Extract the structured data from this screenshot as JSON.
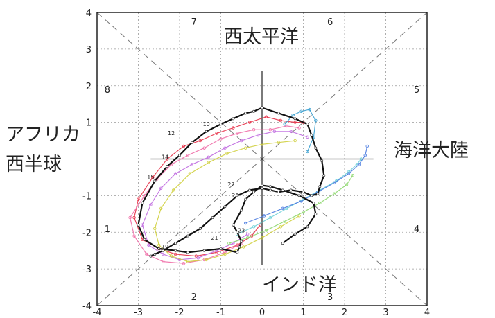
{
  "chart_data": {
    "type": "line",
    "title": "",
    "xlabel": "",
    "ylabel": "",
    "xlim": [
      -4,
      4
    ],
    "ylim": [
      -4,
      4
    ],
    "grid": true,
    "x_ticks": [
      "-4",
      "-3",
      "-2",
      "-1",
      "0",
      "1",
      "2",
      "3",
      "4"
    ],
    "y_ticks": [
      "-4",
      "-3",
      "-2",
      "-1",
      "1",
      "2",
      "3",
      "4"
    ],
    "phase_labels": [
      {
        "text": "1",
        "x": -3.75,
        "y": -1.9
      },
      {
        "text": "2",
        "x": -1.65,
        "y": -3.75
      },
      {
        "text": "3",
        "x": 1.65,
        "y": -3.75
      },
      {
        "text": "4",
        "x": 3.75,
        "y": -1.9
      },
      {
        "text": "5",
        "x": 3.75,
        "y": 1.9
      },
      {
        "text": "6",
        "x": 1.65,
        "y": 3.75
      },
      {
        "text": "7",
        "x": -1.65,
        "y": 3.75
      },
      {
        "text": "8",
        "x": -3.75,
        "y": 1.9
      }
    ],
    "region_labels": {
      "top": "西太平洋",
      "bottom": "インド洋",
      "left_line1": "アフリカ",
      "left_line2": "西半球",
      "right": "海洋大陸"
    },
    "mean_trajectory": {
      "color": "#111111",
      "x": [
        0.5,
        0.8,
        1.1,
        1.3,
        1.25,
        0.9,
        0.5,
        0.2,
        0.0,
        -0.2,
        -0.4,
        -0.5,
        -0.7,
        -0.6,
        -0.5,
        -0.55,
        -0.6,
        -1.0,
        -1.4,
        -1.8,
        -2.1,
        -2.5,
        -2.85,
        -3.0,
        -2.9,
        -2.6,
        -2.3,
        -2.0,
        -1.7,
        -1.35,
        -1.0,
        -0.7,
        -0.4,
        -0.2,
        0.0,
        0.4,
        0.8,
        1.1,
        1.2,
        1.3,
        1.45,
        1.5,
        1.4,
        1.35,
        1.2,
        1.0,
        0.7,
        0.4,
        0.2,
        0.0,
        -0.3,
        -0.6,
        -0.9,
        -1.2,
        -1.5,
        -1.8,
        -2.1,
        -2.4,
        -2.6,
        -2.7
      ],
      "y": [
        -2.3,
        -2.05,
        -1.85,
        -1.5,
        -1.2,
        -1.0,
        -0.85,
        -0.75,
        -0.72,
        -0.9,
        -1.1,
        -1.4,
        -1.8,
        -2.0,
        -2.25,
        -2.4,
        -2.55,
        -2.45,
        -2.5,
        -2.55,
        -2.5,
        -2.45,
        -2.2,
        -1.8,
        -1.2,
        -0.6,
        -0.2,
        0.1,
        0.45,
        0.75,
        0.95,
        1.1,
        1.25,
        1.3,
        1.4,
        1.25,
        1.1,
        0.95,
        0.65,
        0.3,
        -0.05,
        -0.45,
        -0.75,
        -0.95,
        -1.0,
        -0.9,
        -0.85,
        -0.9,
        -0.85,
        -0.8,
        -0.85,
        -1.0,
        -1.3,
        -1.6,
        -1.9,
        -2.1,
        -2.3,
        -2.5,
        -2.6,
        -2.65
      ],
      "day_labels": [
        {
          "text": "10",
          "x": -1.35,
          "y": 0.9
        },
        {
          "text": "12",
          "x": -2.2,
          "y": 0.65
        },
        {
          "text": "14",
          "x": -2.35,
          "y": 0.0
        },
        {
          "text": "15",
          "x": -2.7,
          "y": -0.55
        },
        {
          "text": "19",
          "x": -2.35,
          "y": -2.45
        },
        {
          "text": "21",
          "x": -1.15,
          "y": -2.2
        },
        {
          "text": "23",
          "x": -0.5,
          "y": -2.0
        },
        {
          "text": "25",
          "x": -0.65,
          "y": -1.05
        },
        {
          "text": "27",
          "x": -0.75,
          "y": -0.75
        }
      ]
    },
    "series": [
      {
        "color": "#e8334a",
        "x": [
          1.0,
          0.8,
          0.45,
          0.1,
          -0.3,
          -0.7,
          -1.1,
          -1.5,
          -1.9,
          -2.3,
          -2.65,
          -3.0,
          -3.1,
          -2.9,
          -2.5,
          -2.1,
          -1.6,
          -1.1,
          -0.6,
          -0.25,
          -0.05
        ],
        "y": [
          1.0,
          1.0,
          1.05,
          1.15,
          1.0,
          0.85,
          0.7,
          0.5,
          0.35,
          0.0,
          -0.5,
          -1.1,
          -1.6,
          -2.2,
          -2.45,
          -2.6,
          -2.65,
          -2.55,
          -2.35,
          -2.1,
          -1.8
        ]
      },
      {
        "color": "#f06fa8",
        "x": [
          0.9,
          0.6,
          0.2,
          -0.2,
          -0.6,
          -1.0,
          -1.4,
          -1.8,
          -2.2,
          -2.55,
          -2.85,
          -3.2,
          -3.1,
          -2.8,
          -2.4,
          -1.9,
          -1.4,
          -0.9,
          -0.5
        ],
        "y": [
          0.85,
          0.9,
          0.8,
          0.8,
          0.7,
          0.55,
          0.3,
          0.1,
          -0.15,
          -0.55,
          -1.0,
          -1.6,
          -2.1,
          -2.6,
          -2.8,
          -2.85,
          -2.75,
          -2.55,
          -2.3
        ]
      },
      {
        "color": "#c06be0",
        "x": [
          1.1,
          0.7,
          0.3,
          -0.1,
          -0.5,
          -0.9,
          -1.3,
          -1.7,
          -2.1,
          -2.45,
          -2.7,
          -2.9,
          -2.75,
          -2.4,
          -2.0,
          -1.55,
          -1.1,
          -0.7,
          -0.35
        ],
        "y": [
          0.6,
          0.75,
          0.75,
          0.65,
          0.5,
          0.3,
          0.05,
          -0.15,
          -0.4,
          -0.8,
          -1.25,
          -1.8,
          -2.35,
          -2.6,
          -2.75,
          -2.7,
          -2.5,
          -2.3,
          -2.05
        ]
      },
      {
        "color": "#d0d040",
        "x": [
          0.8,
          0.4,
          0.0,
          -0.4,
          -0.85,
          -1.3,
          -1.75,
          -2.15,
          -2.45,
          -2.6,
          -2.5,
          -2.2,
          -1.8,
          -1.35,
          -0.9,
          -0.45,
          0.0,
          0.45,
          0.9
        ],
        "y": [
          0.5,
          0.45,
          0.4,
          0.3,
          0.15,
          -0.1,
          -0.4,
          -0.85,
          -1.35,
          -1.9,
          -2.35,
          -2.65,
          -2.8,
          -2.75,
          -2.6,
          -2.4,
          -2.15,
          -1.85,
          -1.55
        ]
      },
      {
        "color": "#6fd0d8",
        "x": [
          -0.6,
          -0.2,
          0.2,
          0.6,
          1.0,
          1.4,
          1.8,
          2.1,
          2.3,
          2.4
        ],
        "y": [
          -2.05,
          -1.85,
          -1.6,
          -1.35,
          -1.1,
          -0.85,
          -0.6,
          -0.35,
          -0.15,
          0.0
        ]
      },
      {
        "color": "#4a7be0",
        "x": [
          -0.4,
          0.05,
          0.5,
          0.95,
          1.35,
          1.75,
          2.1,
          2.35,
          2.5,
          2.55
        ],
        "y": [
          -1.75,
          -1.55,
          -1.35,
          -1.15,
          -0.9,
          -0.65,
          -0.4,
          -0.15,
          0.1,
          0.35
        ]
      },
      {
        "color": "#8fd870",
        "x": [
          -0.8,
          -0.35,
          0.1,
          0.55,
          1.0,
          1.4,
          1.75,
          2.05,
          2.2
        ],
        "y": [
          -2.3,
          -2.15,
          -1.95,
          -1.7,
          -1.45,
          -1.2,
          -0.95,
          -0.7,
          -0.45
        ]
      },
      {
        "color": "#3aa0d0",
        "x": [
          0.55,
          0.75,
          0.95,
          1.15,
          1.3,
          1.25,
          1.1
        ],
        "y": [
          0.95,
          1.2,
          1.3,
          1.35,
          1.05,
          0.6,
          0.2
        ]
      }
    ]
  }
}
